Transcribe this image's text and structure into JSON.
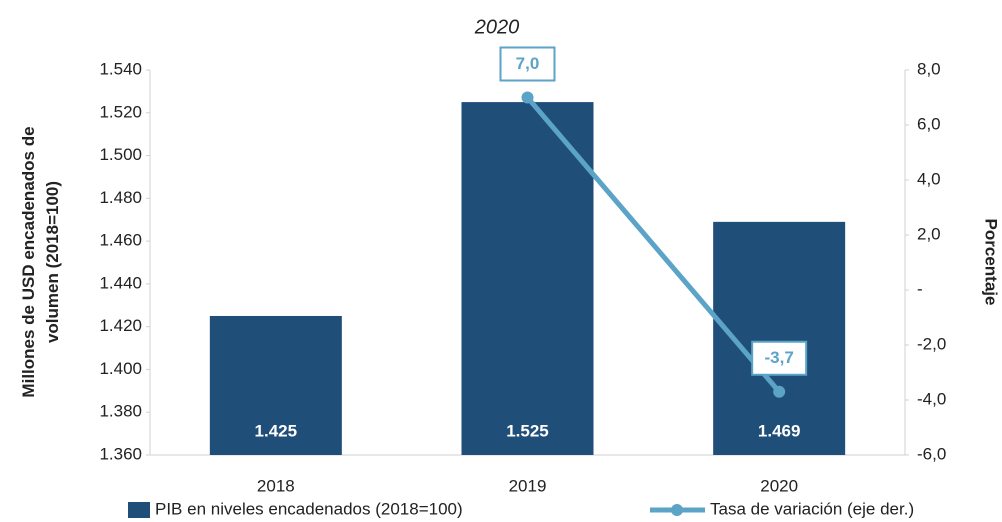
{
  "chart_data": {
    "type": "bar_line",
    "title": "2020",
    "y_label": "Millones de USD encadenados de volumen (2018=100)",
    "y2_label": "Porcentaje",
    "categories": [
      "2018",
      "2019",
      "2020"
    ],
    "series": [
      {
        "name": "PIB en niveles encadenados (2018=100)",
        "type": "bar",
        "color": "#1f4e79",
        "values": [
          1425,
          1525,
          1469
        ],
        "value_labels": [
          "1.425",
          "1.525",
          "1.469"
        ]
      },
      {
        "name": "Tasa de variación (eje der.)",
        "type": "line",
        "color": "#5ba3c7",
        "axis": "y2",
        "values": [
          null,
          7.0,
          -3.7
        ],
        "value_labels": [
          null,
          "7,0",
          "-3,7"
        ]
      }
    ],
    "ylim": [
      1360,
      1540
    ],
    "yticks": [
      {
        "value": 1360,
        "label": "1.360"
      },
      {
        "value": 1380,
        "label": "1.380"
      },
      {
        "value": 1400,
        "label": "1.400"
      },
      {
        "value": 1420,
        "label": "1.420"
      },
      {
        "value": 1440,
        "label": "1.440"
      },
      {
        "value": 1460,
        "label": "1.460"
      },
      {
        "value": 1480,
        "label": "1.480"
      },
      {
        "value": 1500,
        "label": "1.500"
      },
      {
        "value": 1520,
        "label": "1.520"
      },
      {
        "value": 1540,
        "label": "1.540"
      }
    ],
    "y2lim": [
      -6,
      8
    ],
    "y2ticks": [
      {
        "value": -6,
        "label": "-6,0"
      },
      {
        "value": -4,
        "label": "-4,0"
      },
      {
        "value": -2,
        "label": "-2,0"
      },
      {
        "value": 0,
        "label": "-"
      },
      {
        "value": 2,
        "label": "2,0"
      },
      {
        "value": 4,
        "label": "4,0"
      },
      {
        "value": 6,
        "label": "6,0"
      },
      {
        "value": 8,
        "label": "8,0"
      }
    ],
    "grid": false
  }
}
